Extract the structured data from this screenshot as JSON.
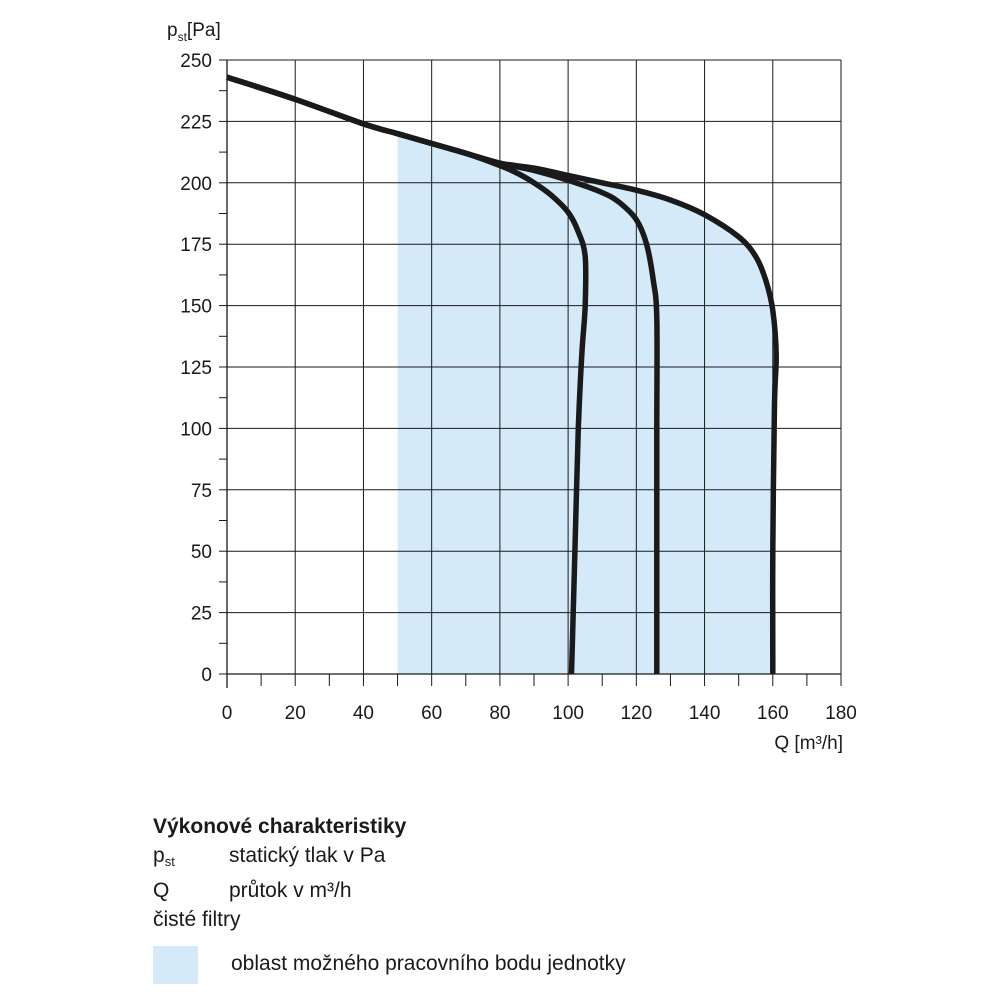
{
  "chart_data": {
    "type": "line",
    "xlabel": "Q [m³/h]",
    "ylabel_main": "p",
    "ylabel_sub": "st",
    "ylabel_unit": "[Pa]",
    "xlim": [
      0,
      180
    ],
    "ylim": [
      0,
      250
    ],
    "x_ticks": [
      0,
      20,
      40,
      60,
      80,
      100,
      120,
      140,
      160,
      180
    ],
    "y_ticks": [
      0,
      25,
      50,
      75,
      100,
      125,
      150,
      175,
      200,
      225,
      250
    ],
    "grid": true,
    "shaded_region_color": "#d4eaf9",
    "line_color": "#1a1a1a",
    "series": [
      {
        "x": [
          0,
          20,
          40,
          50,
          60,
          70,
          80,
          85,
          90,
          95,
          100,
          103,
          105,
          105,
          104,
          103,
          102,
          101.5,
          101
        ],
        "y": [
          243,
          234,
          224,
          220,
          216,
          212,
          207,
          204,
          200,
          195,
          188,
          180,
          170,
          150,
          130,
          100,
          50,
          25,
          0
        ]
      },
      {
        "x": [
          0,
          20,
          40,
          50,
          60,
          70,
          80,
          90,
          100,
          110,
          115,
          120,
          123,
          125,
          126,
          126,
          126,
          126
        ],
        "y": [
          243,
          234,
          224,
          220,
          216,
          212,
          208,
          205,
          201,
          196,
          192,
          185,
          175,
          160,
          145,
          100,
          50,
          0
        ]
      },
      {
        "x": [
          0,
          20,
          40,
          50,
          60,
          70,
          80,
          90,
          100,
          110,
          120,
          130,
          140,
          150,
          155,
          158,
          160,
          161,
          160.5,
          160,
          160
        ],
        "y": [
          243,
          234,
          224,
          220,
          216,
          212,
          208,
          206,
          203,
          200,
          197,
          193,
          187,
          178,
          170,
          160,
          148,
          130,
          110,
          50,
          0
        ]
      }
    ],
    "shaded_region": {
      "x": [
        50,
        60,
        70,
        80,
        90,
        100,
        110,
        120,
        130,
        140,
        150,
        155,
        158,
        160,
        161,
        160.5,
        160,
        160,
        50
      ],
      "y": [
        220,
        216,
        212,
        208,
        206,
        203,
        200,
        197,
        193,
        187,
        178,
        170,
        160,
        148,
        130,
        110,
        50,
        0,
        0
      ]
    }
  },
  "legend": {
    "title": "Výkonové charakteristiky",
    "rows": [
      {
        "symbol": "p",
        "symbol_sub": "st",
        "text": "statický tlak v Pa"
      },
      {
        "symbol": "Q",
        "symbol_sub": "",
        "text": "průtok v m³/h"
      }
    ],
    "note": "čisté filtry",
    "swatch_label": "oblast možného pracovního bodu jednotky"
  }
}
